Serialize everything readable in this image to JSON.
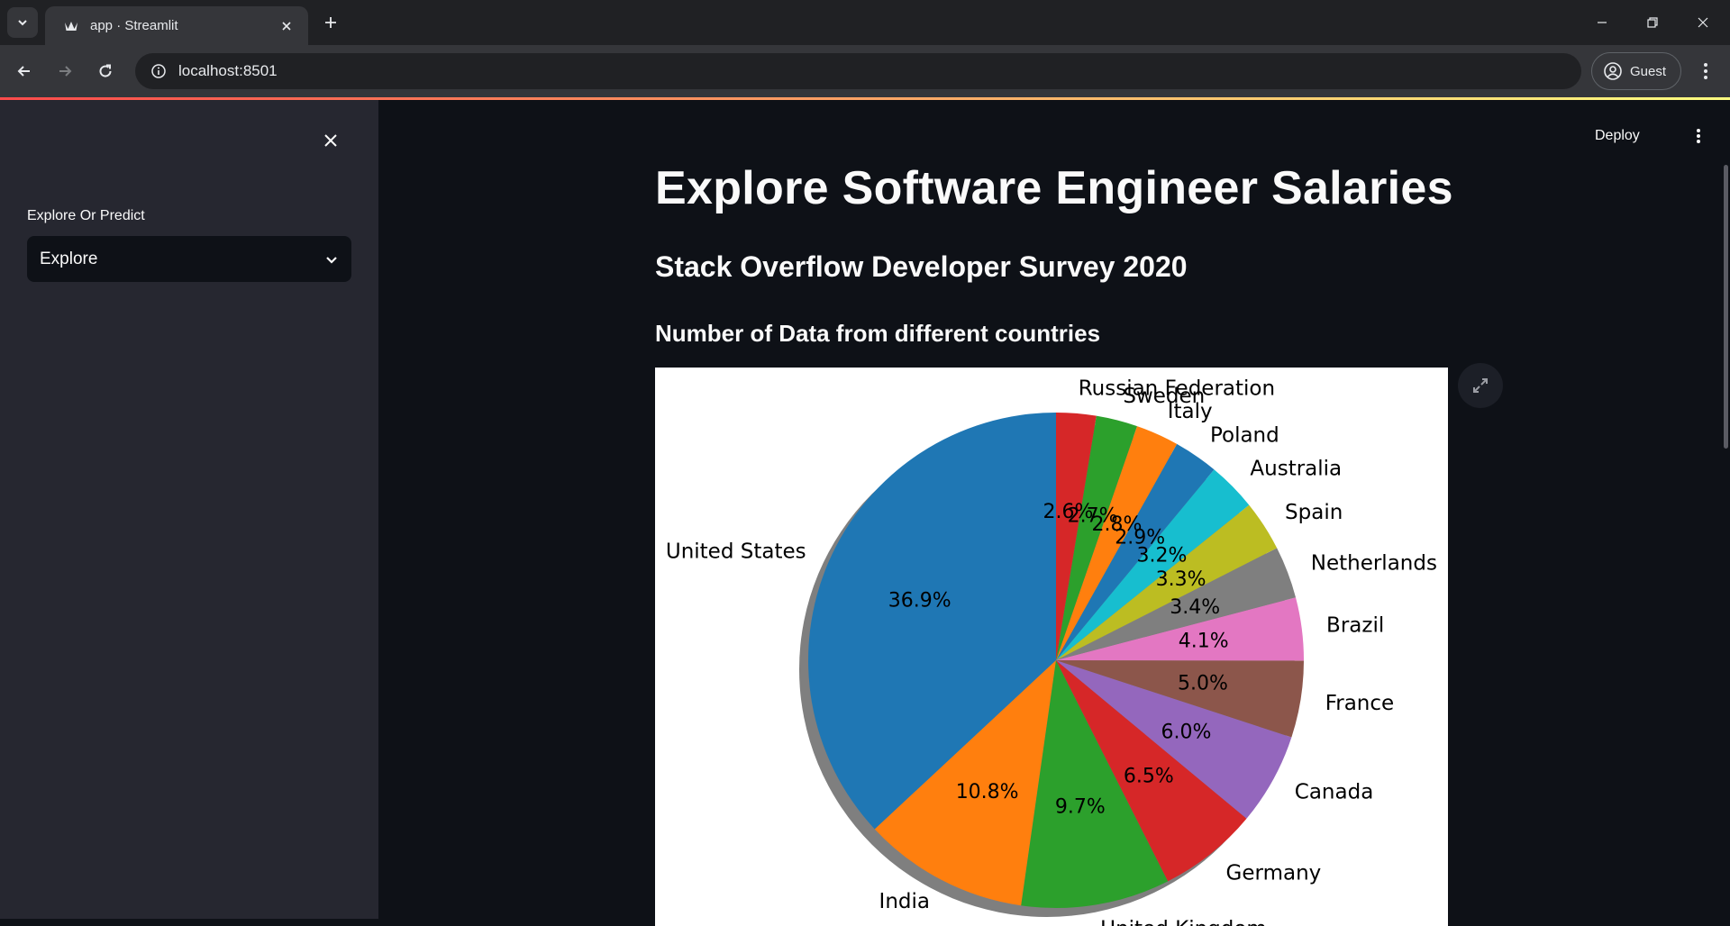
{
  "browser": {
    "tab_title": "app · Streamlit",
    "url": "localhost:8501",
    "profile_label": "Guest"
  },
  "sidebar": {
    "select_label": "Explore Or Predict",
    "select_value": "Explore"
  },
  "header": {
    "deploy_label": "Deploy"
  },
  "main": {
    "title": "Explore Software Engineer Salaries",
    "subtitle": "Stack Overflow Developer Survey 2020",
    "section_title": "Number of Data from different countries"
  },
  "chart_data": {
    "type": "pie",
    "shadow": true,
    "start_angle_deg": 90,
    "labels": [
      "United States",
      "India",
      "United Kingdom",
      "Germany",
      "Canada",
      "France",
      "Brazil",
      "Netherlands",
      "Spain",
      "Australia",
      "Poland",
      "Italy",
      "Sweden",
      "Russian Federation"
    ],
    "values": [
      36.9,
      10.8,
      9.7,
      6.5,
      6.0,
      5.0,
      4.1,
      3.4,
      3.3,
      3.2,
      2.9,
      2.8,
      2.7,
      2.6
    ],
    "pct_labels": [
      "36.9%",
      "10.8%",
      "9.7%",
      "6.5%",
      "6.0%",
      "5.0%",
      "4.1%",
      "3.4%",
      "3.3%",
      "3.2%",
      "2.9%",
      "2.8%",
      "2.7%",
      "2.6%"
    ],
    "colors": [
      "#1f77b4",
      "#ff7f0e",
      "#2ca02c",
      "#d62728",
      "#9467bd",
      "#8c564b",
      "#e377c2",
      "#7f7f7f",
      "#bcbd22",
      "#17becf",
      "#1f77b4",
      "#ff7f0e",
      "#2ca02c",
      "#d62728"
    ]
  }
}
